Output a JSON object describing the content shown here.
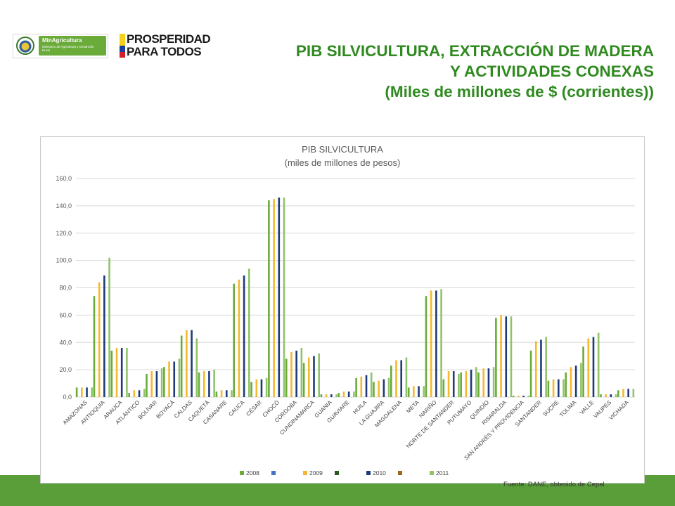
{
  "header": {
    "title_line1": "PIB SILVICULTURA, EXTRACCIÓN DE MADERA",
    "title_line2": "Y ACTIVIDADES CONEXAS",
    "title_line3": "(Miles de millones de $ (corrientes))"
  },
  "logos": {
    "min_name": "MinAgricultura",
    "min_sub": "Ministerio de Agricultura y Desarrollo Rural",
    "prosperidad_line1": "PROSPERIDAD",
    "prosperidad_line2": "PARA TODOS"
  },
  "source": "Fuente: DANE, obtenido de Cepal",
  "colors": {
    "green_band": "#5a9e3a",
    "title_green": "#2f8a1f"
  },
  "chart_data": {
    "type": "bar",
    "title": "PIB SILVICULTURA",
    "subtitle": "(miles de millones de pesos)",
    "ylim": [
      0,
      160
    ],
    "yticks": [
      "0,0",
      "20,0",
      "40,0",
      "60,0",
      "80,0",
      "100,0",
      "120,0",
      "140,0",
      "160,0"
    ],
    "grid": true,
    "legend_position": "bottom",
    "categories": [
      "AMAZONAS",
      "ANTIOQUIA",
      "ARAUCA",
      "ATLÁNTICO",
      "BOLÍVAR",
      "BOYACÁ",
      "CALDAS",
      "CAQUETÁ",
      "CASANARE",
      "CAUCA",
      "CÉSAR",
      "CHOCÓ",
      "CÓRDOBA",
      "CUNDINAMARCA",
      "GUANIA",
      "GUAVIARE",
      "HUILA",
      "LA GUAJIRA",
      "MAGDALENA",
      "META",
      "NARIÑO",
      "NORTE DE SANTANDER",
      "PUTUMAYO",
      "QUINDÍO",
      "RISARALDA",
      "SAN ANDRÉS Y PROVIDENCIA",
      "SANTANDER",
      "SUCRE",
      "TOLIMA",
      "VALLE",
      "VAUPES",
      "VICHADA"
    ],
    "series": [
      {
        "name": "2008",
        "color": "#6aab3a",
        "values": [
          7,
          74,
          34,
          3,
          17,
          22,
          45,
          18,
          4,
          83,
          11,
          144,
          28,
          25,
          2,
          3,
          14,
          11,
          23,
          7,
          74,
          13,
          18,
          18,
          58,
          1,
          34,
          12,
          18,
          37,
          2,
          5
        ]
      },
      {
        "name": "",
        "color": "#4472c4",
        "values": [
          null,
          null,
          null,
          null,
          null,
          null,
          null,
          null,
          null,
          null,
          null,
          null,
          null,
          null,
          null,
          null,
          null,
          null,
          null,
          null,
          null,
          null,
          null,
          null,
          null,
          null,
          null,
          null,
          null,
          null,
          null,
          null
        ]
      },
      {
        "name": "2009",
        "color": "#f5b82e",
        "values": [
          7,
          84,
          36,
          5,
          19,
          26,
          49,
          19,
          5,
          86,
          13,
          145,
          33,
          29,
          2,
          4,
          15,
          12,
          27,
          8,
          78,
          19,
          19,
          21,
          60,
          1,
          41,
          13,
          22,
          43,
          2,
          6
        ]
      },
      {
        "name": "",
        "color": "#2d5a1e",
        "values": [
          null,
          null,
          null,
          null,
          null,
          null,
          null,
          null,
          null,
          null,
          null,
          null,
          null,
          null,
          null,
          null,
          null,
          null,
          null,
          null,
          null,
          null,
          null,
          null,
          null,
          null,
          null,
          null,
          null,
          null,
          null,
          null
        ]
      },
      {
        "name": "2010",
        "color": "#1f3a7a",
        "values": [
          7,
          89,
          36,
          5,
          19,
          26,
          49,
          19,
          5,
          89,
          13,
          146,
          34,
          30,
          2,
          4,
          16,
          13,
          27,
          8,
          78,
          19,
          20,
          21,
          59,
          1,
          42,
          13,
          23,
          44,
          2,
          6
        ]
      },
      {
        "name": "",
        "color": "#9a6a1a",
        "values": [
          null,
          null,
          null,
          null,
          null,
          null,
          null,
          null,
          null,
          null,
          null,
          null,
          null,
          null,
          null,
          null,
          null,
          null,
          null,
          null,
          null,
          null,
          null,
          null,
          null,
          null,
          null,
          null,
          null,
          null,
          null,
          null
        ]
      },
      {
        "name": "2011",
        "color": "#8fc46a",
        "values": [
          7,
          102,
          36,
          6,
          21,
          28,
          43,
          20,
          5,
          94,
          14,
          146,
          36,
          32,
          2,
          4,
          18,
          14,
          29,
          8,
          79,
          17,
          22,
          22,
          59,
          1,
          44,
          13,
          25,
          47,
          2,
          6
        ]
      }
    ]
  }
}
